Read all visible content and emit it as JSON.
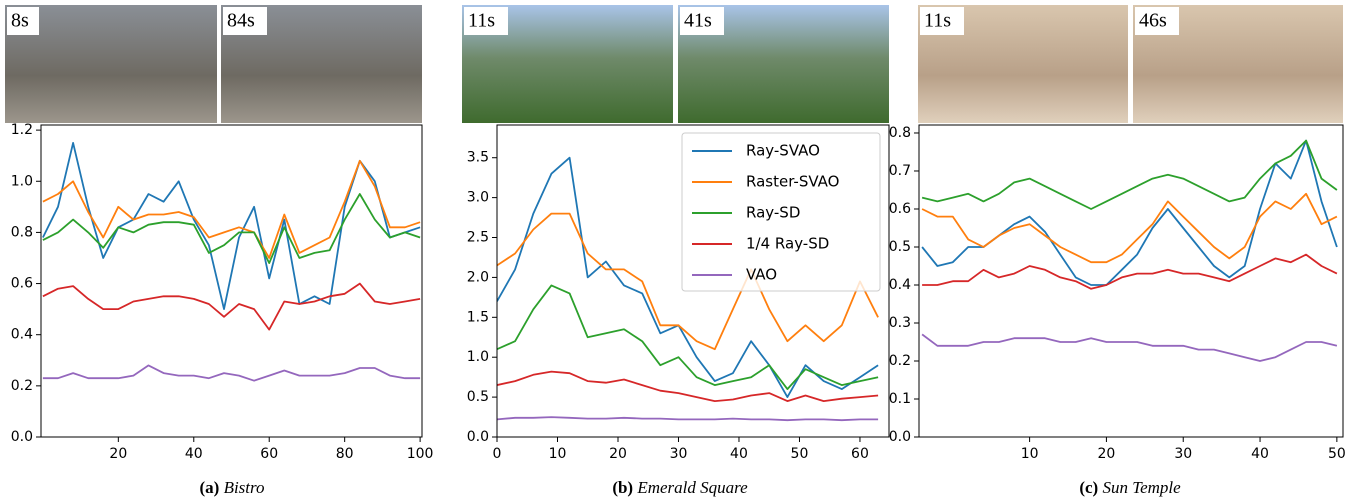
{
  "chart_data": [
    {
      "type": "line",
      "label": "(a)",
      "title": "Bistro",
      "thumbnails": [
        "8s",
        "84s"
      ],
      "x": [
        0,
        4,
        8,
        12,
        16,
        20,
        24,
        28,
        32,
        36,
        40,
        44,
        48,
        52,
        56,
        60,
        64,
        68,
        72,
        76,
        80,
        84,
        88,
        92,
        96,
        100
      ],
      "xlim": [
        -0.5,
        100.5
      ],
      "xticks": [
        20,
        40,
        60,
        80,
        100
      ],
      "ylim": [
        0,
        1.22
      ],
      "yticks": [
        {
          "value": 0,
          "label": "0.0"
        },
        {
          "value": 0.2,
          "label": "0.2"
        },
        {
          "value": 0.4,
          "label": "0.4"
        },
        {
          "value": 0.6,
          "label": "0.6"
        },
        {
          "value": 0.8,
          "label": "0.8"
        },
        {
          "value": 1.0,
          "label": "1.0"
        },
        {
          "value": 1.2,
          "label": "1.2"
        }
      ],
      "series": [
        {
          "color": "#1f77b4",
          "values": [
            0.78,
            0.9,
            1.15,
            0.9,
            0.7,
            0.82,
            0.85,
            0.95,
            0.92,
            1.0,
            0.85,
            0.75,
            0.5,
            0.78,
            0.9,
            0.62,
            0.85,
            0.52,
            0.55,
            0.52,
            0.9,
            1.08,
            1.0,
            0.78,
            0.8,
            0.82
          ]
        },
        {
          "color": "#ff7f0e",
          "values": [
            0.92,
            0.95,
            1.0,
            0.88,
            0.78,
            0.9,
            0.85,
            0.87,
            0.87,
            0.88,
            0.86,
            0.78,
            0.8,
            0.82,
            0.8,
            0.7,
            0.87,
            0.72,
            0.75,
            0.78,
            0.92,
            1.08,
            0.98,
            0.82,
            0.82,
            0.84
          ]
        },
        {
          "color": "#2ca02c",
          "values": [
            0.77,
            0.8,
            0.85,
            0.8,
            0.74,
            0.82,
            0.8,
            0.83,
            0.84,
            0.84,
            0.83,
            0.72,
            0.75,
            0.8,
            0.8,
            0.68,
            0.82,
            0.7,
            0.72,
            0.73,
            0.85,
            0.95,
            0.85,
            0.78,
            0.8,
            0.78
          ]
        },
        {
          "color": "#d62728",
          "values": [
            0.55,
            0.58,
            0.59,
            0.54,
            0.5,
            0.5,
            0.53,
            0.54,
            0.55,
            0.55,
            0.54,
            0.52,
            0.47,
            0.52,
            0.5,
            0.42,
            0.53,
            0.52,
            0.53,
            0.55,
            0.56,
            0.6,
            0.53,
            0.52,
            0.53,
            0.54
          ]
        },
        {
          "color": "#9467bd",
          "values": [
            0.23,
            0.23,
            0.25,
            0.23,
            0.23,
            0.23,
            0.24,
            0.28,
            0.25,
            0.24,
            0.24,
            0.23,
            0.25,
            0.24,
            0.22,
            0.24,
            0.26,
            0.24,
            0.24,
            0.24,
            0.25,
            0.27,
            0.27,
            0.24,
            0.23,
            0.23
          ]
        }
      ]
    },
    {
      "type": "line",
      "label": "(b)",
      "title": "Emerald Square",
      "thumbnails": [
        "11s",
        "41s"
      ],
      "legend": "upper right",
      "x": [
        0,
        3,
        6,
        9,
        12,
        15,
        18,
        21,
        24,
        27,
        30,
        33,
        36,
        39,
        42,
        45,
        48,
        51,
        54,
        57,
        60,
        63
      ],
      "xlim": [
        0,
        64.8
      ],
      "xticks": [
        0,
        10,
        20,
        30,
        40,
        50,
        60
      ],
      "ylim": [
        0,
        3.91
      ],
      "yticks": [
        {
          "value": 0,
          "label": "0.0"
        },
        {
          "value": 0.5,
          "label": "0.5"
        },
        {
          "value": 1.0,
          "label": "1.0"
        },
        {
          "value": 1.5,
          "label": "1.5"
        },
        {
          "value": 2.0,
          "label": "2.0"
        },
        {
          "value": 2.5,
          "label": "2.5"
        },
        {
          "value": 3.0,
          "label": "3.0"
        },
        {
          "value": 3.5,
          "label": "3.5"
        }
      ],
      "series": [
        {
          "name": "Ray-SVAO",
          "color": "#1f77b4",
          "values": [
            1.7,
            2.1,
            2.8,
            3.3,
            3.5,
            2.0,
            2.2,
            1.9,
            1.8,
            1.3,
            1.4,
            1.0,
            0.7,
            0.8,
            1.2,
            0.9,
            0.5,
            0.9,
            0.7,
            0.6,
            0.75,
            0.9
          ]
        },
        {
          "name": "Raster-SVAO",
          "color": "#ff7f0e",
          "values": [
            2.15,
            2.3,
            2.6,
            2.8,
            2.8,
            2.3,
            2.1,
            2.1,
            1.95,
            1.4,
            1.4,
            1.2,
            1.1,
            1.6,
            2.1,
            1.6,
            1.2,
            1.4,
            1.2,
            1.4,
            1.95,
            1.5
          ]
        },
        {
          "name": "Ray-SD",
          "color": "#2ca02c",
          "values": [
            1.1,
            1.2,
            1.6,
            1.9,
            1.8,
            1.25,
            1.3,
            1.35,
            1.2,
            0.9,
            1.0,
            0.75,
            0.65,
            0.7,
            0.75,
            0.9,
            0.6,
            0.85,
            0.75,
            0.65,
            0.7,
            0.75
          ]
        },
        {
          "name": "1/4 Ray-SD",
          "color": "#d62728",
          "values": [
            0.65,
            0.7,
            0.78,
            0.82,
            0.8,
            0.7,
            0.68,
            0.72,
            0.65,
            0.58,
            0.55,
            0.5,
            0.45,
            0.47,
            0.52,
            0.55,
            0.45,
            0.52,
            0.45,
            0.48,
            0.5,
            0.52
          ]
        },
        {
          "name": "VAO",
          "color": "#9467bd",
          "values": [
            0.22,
            0.24,
            0.24,
            0.25,
            0.24,
            0.23,
            0.23,
            0.24,
            0.23,
            0.23,
            0.22,
            0.22,
            0.22,
            0.23,
            0.22,
            0.22,
            0.21,
            0.22,
            0.22,
            0.21,
            0.22,
            0.22
          ]
        }
      ]
    },
    {
      "type": "line",
      "label": "(c)",
      "title": "Sun Temple",
      "thumbnails": [
        "11s",
        "46s"
      ],
      "x": [
        -4,
        -2,
        0,
        2,
        4,
        6,
        8,
        10,
        12,
        14,
        16,
        18,
        20,
        22,
        24,
        26,
        28,
        30,
        32,
        34,
        36,
        38,
        40,
        42,
        44,
        46,
        48,
        50
      ],
      "xlim": [
        -4.4,
        50.8
      ],
      "xticks": [
        10,
        20,
        30,
        40,
        50
      ],
      "ylim": [
        0,
        0.821
      ],
      "yticks": [
        {
          "value": 0,
          "label": "0.0"
        },
        0.1,
        0.2,
        0.3,
        0.4,
        0.5,
        0.6,
        0.7,
        0.8
      ],
      "series": [
        {
          "color": "#1f77b4",
          "values": [
            0.5,
            0.45,
            0.46,
            0.5,
            0.5,
            0.53,
            0.56,
            0.58,
            0.54,
            0.48,
            0.42,
            0.4,
            0.4,
            0.44,
            0.48,
            0.55,
            0.6,
            0.55,
            0.5,
            0.45,
            0.42,
            0.45,
            0.6,
            0.72,
            0.68,
            0.78,
            0.62,
            0.5
          ]
        },
        {
          "color": "#ff7f0e",
          "values": [
            0.6,
            0.58,
            0.58,
            0.52,
            0.5,
            0.53,
            0.55,
            0.56,
            0.53,
            0.5,
            0.48,
            0.46,
            0.46,
            0.48,
            0.52,
            0.56,
            0.62,
            0.58,
            0.54,
            0.5,
            0.47,
            0.5,
            0.58,
            0.62,
            0.6,
            0.64,
            0.56,
            0.58
          ]
        },
        {
          "color": "#2ca02c",
          "values": [
            0.63,
            0.62,
            0.63,
            0.64,
            0.62,
            0.64,
            0.67,
            0.68,
            0.66,
            0.64,
            0.62,
            0.6,
            0.62,
            0.64,
            0.66,
            0.68,
            0.69,
            0.68,
            0.66,
            0.64,
            0.62,
            0.63,
            0.68,
            0.72,
            0.74,
            0.78,
            0.68,
            0.65
          ]
        },
        {
          "color": "#d62728",
          "values": [
            0.4,
            0.4,
            0.41,
            0.41,
            0.44,
            0.42,
            0.43,
            0.45,
            0.44,
            0.42,
            0.41,
            0.39,
            0.4,
            0.42,
            0.43,
            0.43,
            0.44,
            0.43,
            0.43,
            0.42,
            0.41,
            0.43,
            0.45,
            0.47,
            0.46,
            0.48,
            0.45,
            0.43
          ]
        },
        {
          "color": "#9467bd",
          "values": [
            0.27,
            0.24,
            0.24,
            0.24,
            0.25,
            0.25,
            0.26,
            0.26,
            0.26,
            0.25,
            0.25,
            0.26,
            0.25,
            0.25,
            0.25,
            0.24,
            0.24,
            0.24,
            0.23,
            0.23,
            0.22,
            0.21,
            0.2,
            0.21,
            0.23,
            0.25,
            0.25,
            0.24
          ]
        }
      ]
    }
  ]
}
